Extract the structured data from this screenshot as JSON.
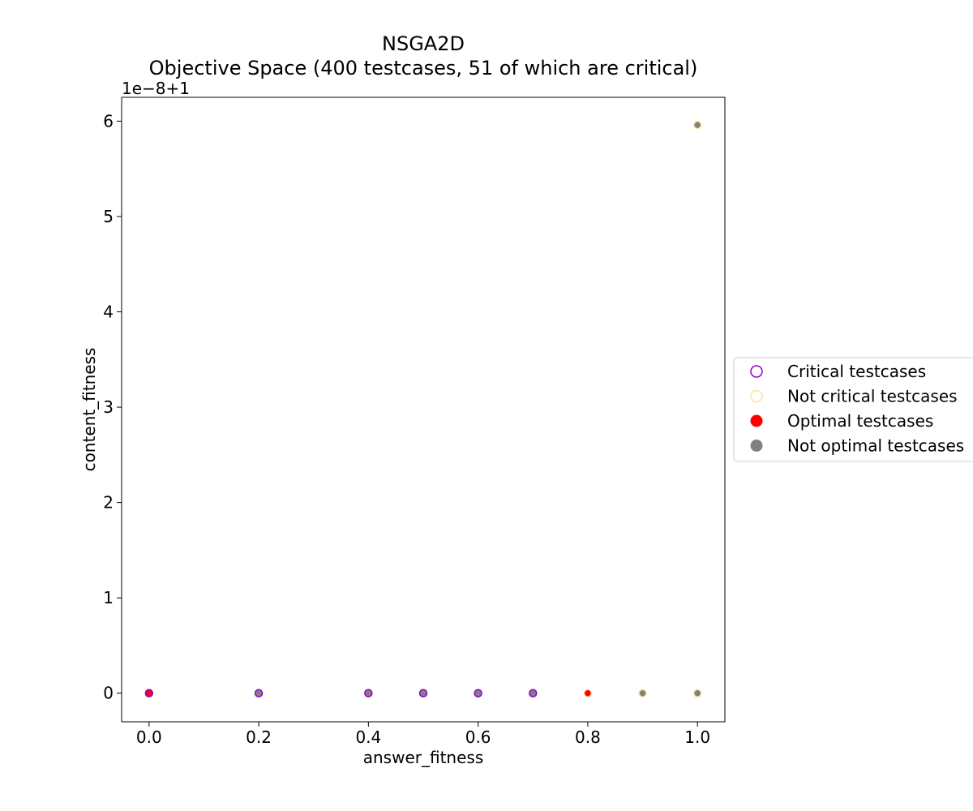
{
  "chart_data": {
    "type": "scatter",
    "title": "NSGA2D",
    "subtitle": "Objective Space (400 testcases, 51 of which are critical)",
    "xlabel": "answer_fitness",
    "ylabel": "content_fitness",
    "y_offset_label": "1e−8+1",
    "xlim": [
      -0.05,
      1.05
    ],
    "ylim": [
      -0.3,
      6.25
    ],
    "x_ticks": [
      0.0,
      0.2,
      0.4,
      0.6,
      0.8,
      1.0
    ],
    "x_tick_labels": [
      "0.0",
      "0.2",
      "0.4",
      "0.6",
      "0.8",
      "1.0"
    ],
    "y_ticks": [
      0,
      1,
      2,
      3,
      4,
      5,
      6
    ],
    "y_tick_labels": [
      "0",
      "1",
      "2",
      "3",
      "4",
      "5",
      "6"
    ],
    "grid": false,
    "legend_placement": "right-outside",
    "colors": {
      "critical_edge": "#9400D3",
      "not_critical_edge": "#FFE4A0",
      "optimal_fill": "#FF0000",
      "not_optimal_fill": "#808080"
    },
    "legend": [
      {
        "label": "Critical testcases",
        "marker": "hollow",
        "color": "#9400D3"
      },
      {
        "label": "Not critical testcases",
        "marker": "hollow",
        "color": "#FFE4A0"
      },
      {
        "label": "Optimal testcases",
        "marker": "filled",
        "color": "#FF0000"
      },
      {
        "label": "Not optimal testcases",
        "marker": "filled",
        "color": "#808080"
      }
    ],
    "points": [
      {
        "x": 0.0,
        "y": 0,
        "critical": true,
        "optimal": true
      },
      {
        "x": 0.2,
        "y": 0,
        "critical": true,
        "optimal": false
      },
      {
        "x": 0.4,
        "y": 0,
        "critical": true,
        "optimal": false
      },
      {
        "x": 0.5,
        "y": 0,
        "critical": true,
        "optimal": false
      },
      {
        "x": 0.6,
        "y": 0,
        "critical": true,
        "optimal": false
      },
      {
        "x": 0.7,
        "y": 0,
        "critical": true,
        "optimal": false
      },
      {
        "x": 0.8,
        "y": 0,
        "critical": false,
        "optimal": true
      },
      {
        "x": 0.9,
        "y": 0,
        "critical": false,
        "optimal": false
      },
      {
        "x": 1.0,
        "y": 0,
        "critical": false,
        "optimal": false
      },
      {
        "x": 1.0,
        "y": 5.96,
        "critical": false,
        "optimal": false
      }
    ]
  }
}
